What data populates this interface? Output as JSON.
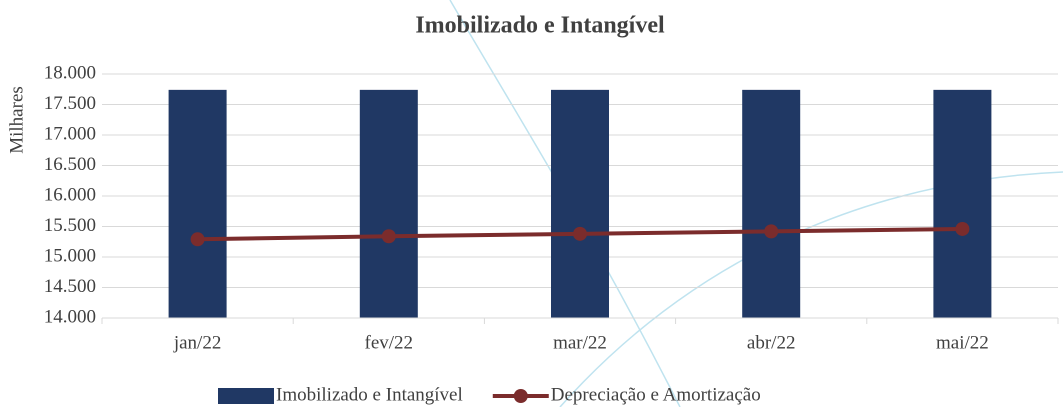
{
  "chart_data": {
    "type": "combo",
    "title": "Imobilizado e Intangível",
    "y_label": "Milhares",
    "categories": [
      "jan/22",
      "fev/22",
      "mar/22",
      "abr/22",
      "mai/22"
    ],
    "series": [
      {
        "name": "Imobilizado e Intangível",
        "type": "bar",
        "color": "#203864",
        "values": [
          17740,
          17740,
          17740,
          17740,
          17740
        ]
      },
      {
        "name": "Depreciação e Amortização",
        "type": "line",
        "color": "#7b2c2c",
        "values": [
          15290,
          15340,
          15380,
          15420,
          15460
        ]
      }
    ],
    "ylim": [
      14000,
      18000
    ],
    "yticks": [
      {
        "value": 14000,
        "label": "14.000"
      },
      {
        "value": 14500,
        "label": "14.500"
      },
      {
        "value": 15000,
        "label": "15.000"
      },
      {
        "value": 15500,
        "label": "15.500"
      },
      {
        "value": 16000,
        "label": "16.000"
      },
      {
        "value": 16500,
        "label": "16.500"
      },
      {
        "value": 17000,
        "label": "17.000"
      },
      {
        "value": 17500,
        "label": "17.500"
      },
      {
        "value": 18000,
        "label": "18.000"
      }
    ],
    "grid": true,
    "legend": "bottom"
  }
}
